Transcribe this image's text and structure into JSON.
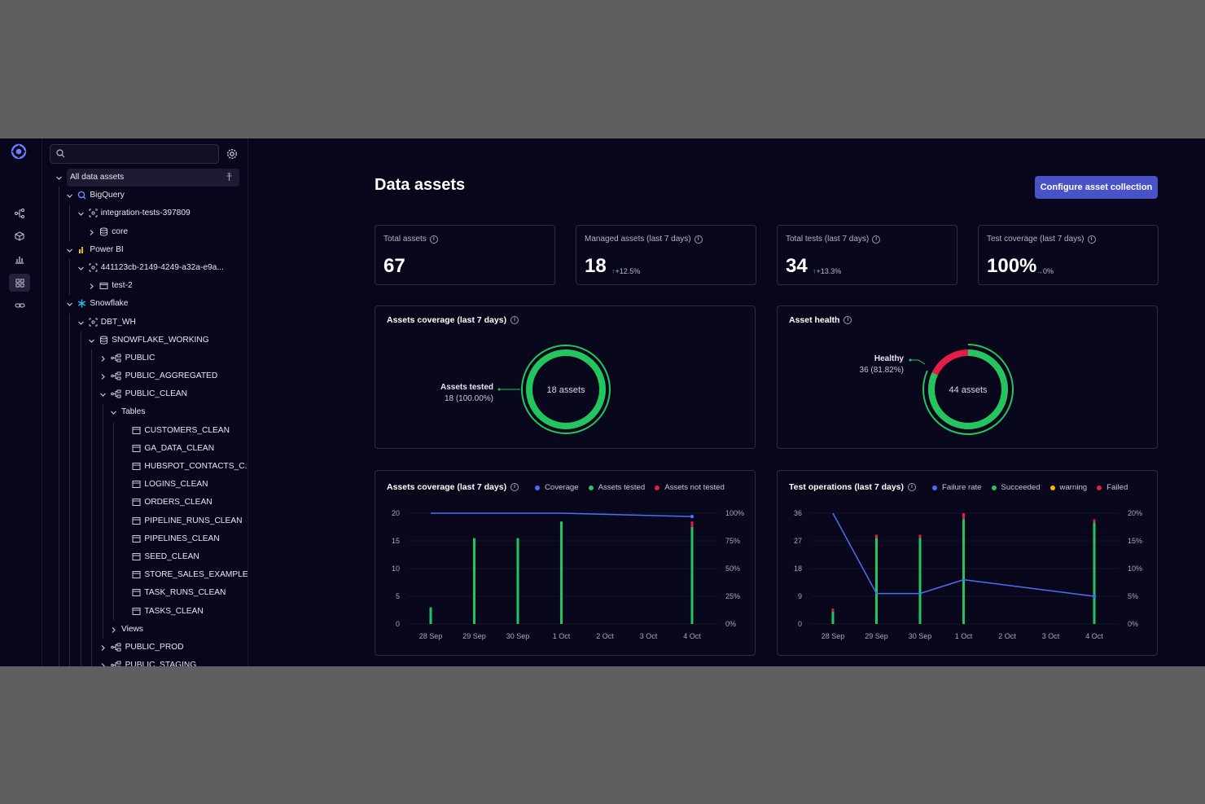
{
  "search": {
    "value": "",
    "placeholder": ""
  },
  "tree": [
    {
      "label": "All data assets",
      "depth": 0,
      "chev": "down",
      "icon": "",
      "highlight": true
    },
    {
      "label": "BigQuery",
      "depth": 1,
      "chev": "down",
      "icon": "bigquery-icon"
    },
    {
      "label": "integration-tests-397809",
      "depth": 2,
      "chev": "down",
      "icon": "project-icon"
    },
    {
      "label": "core",
      "depth": 3,
      "chev": "right",
      "icon": "database-icon"
    },
    {
      "label": "Power BI",
      "depth": 1,
      "chev": "down",
      "icon": "powerbi-icon"
    },
    {
      "label": "441123cb-2149-4249-a32a-e9a...",
      "depth": 2,
      "chev": "down",
      "icon": "project-icon"
    },
    {
      "label": "test-2",
      "depth": 3,
      "chev": "right",
      "icon": "folder-icon"
    },
    {
      "label": "Snowflake",
      "depth": 1,
      "chev": "down",
      "icon": "snowflake-icon"
    },
    {
      "label": "DBT_WH",
      "depth": 2,
      "chev": "down",
      "icon": "project-icon"
    },
    {
      "label": "SNOWFLAKE_WORKING",
      "depth": 3,
      "chev": "down",
      "icon": "database-icon"
    },
    {
      "label": "PUBLIC",
      "depth": 4,
      "chev": "right",
      "icon": "schema-icon"
    },
    {
      "label": "PUBLIC_AGGREGATED",
      "depth": 4,
      "chev": "right",
      "icon": "schema-icon"
    },
    {
      "label": "PUBLIC_CLEAN",
      "depth": 4,
      "chev": "down",
      "icon": "schema-icon"
    },
    {
      "label": "Tables",
      "depth": 5,
      "chev": "down",
      "icon": ""
    },
    {
      "label": "CUSTOMERS_CLEAN",
      "depth": 6,
      "chev": "",
      "icon": "table-icon"
    },
    {
      "label": "GA_DATA_CLEAN",
      "depth": 6,
      "chev": "",
      "icon": "table-icon"
    },
    {
      "label": "HUBSPOT_CONTACTS_C...",
      "depth": 6,
      "chev": "",
      "icon": "table-icon"
    },
    {
      "label": "LOGINS_CLEAN",
      "depth": 6,
      "chev": "",
      "icon": "table-icon"
    },
    {
      "label": "ORDERS_CLEAN",
      "depth": 6,
      "chev": "",
      "icon": "table-icon"
    },
    {
      "label": "PIPELINE_RUNS_CLEAN",
      "depth": 6,
      "chev": "",
      "icon": "table-icon"
    },
    {
      "label": "PIPELINES_CLEAN",
      "depth": 6,
      "chev": "",
      "icon": "table-icon"
    },
    {
      "label": "SEED_CLEAN",
      "depth": 6,
      "chev": "",
      "icon": "table-icon"
    },
    {
      "label": "STORE_SALES_EXAMPLE",
      "depth": 6,
      "chev": "",
      "icon": "table-icon"
    },
    {
      "label": "TASK_RUNS_CLEAN",
      "depth": 6,
      "chev": "",
      "icon": "table-icon"
    },
    {
      "label": "TASKS_CLEAN",
      "depth": 6,
      "chev": "",
      "icon": "table-icon"
    },
    {
      "label": "Views",
      "depth": 5,
      "chev": "right",
      "icon": ""
    },
    {
      "label": "PUBLIC_PROD",
      "depth": 4,
      "chev": "right",
      "icon": "schema-icon"
    },
    {
      "label": "PUBLIC_STAGING",
      "depth": 4,
      "chev": "right",
      "icon": "schema-icon"
    }
  ],
  "rail": [
    "lineage-icon",
    "cube-icon",
    "bar-chart-icon",
    "grid-icon",
    "link-icon"
  ],
  "page": {
    "title": "Data assets",
    "configure_label": "Configure asset collection"
  },
  "kpis": [
    {
      "label": "Total assets",
      "value": "67",
      "delta": ""
    },
    {
      "label": "Managed assets (last 7 days)",
      "value": "18",
      "arrow": "↑",
      "delta": "+12.5%"
    },
    {
      "label": "Total tests (last 7 days)",
      "value": "34",
      "arrow": "↑",
      "delta": "+13.3%"
    },
    {
      "label": "Test coverage (last 7 days)",
      "value": "100%",
      "arrow": "→",
      "delta": "0%"
    }
  ],
  "donut_coverage": {
    "title": "Assets coverage (last 7 days)",
    "center": "18 assets",
    "label": "Assets tested",
    "sub": "18 (100.00%)",
    "fraction": 1.0
  },
  "donut_health": {
    "title": "Asset health",
    "center": "44 assets",
    "label": "Healthy",
    "sub": "36 (81.82%)",
    "fraction": 0.8182
  },
  "colors": {
    "green": "#22c55e",
    "red": "#e11d48",
    "blue": "#4f6ef7",
    "yellow": "#f5b700"
  },
  "chart_data": [
    {
      "type": "bar",
      "title": "Assets coverage (last 7 days)",
      "categories": [
        "28 Sep",
        "29 Sep",
        "30 Sep",
        "1 Oct",
        "2 Oct",
        "3 Oct",
        "4 Oct"
      ],
      "ylim": [
        0,
        20
      ],
      "y_ticks": [
        "20",
        "15",
        "10",
        "5",
        "0"
      ],
      "y2_ticks": [
        "100%",
        "75%",
        "50%",
        "25%",
        "0%"
      ],
      "series": [
        {
          "name": "Assets tested",
          "values": [
            3,
            15.5,
            15.5,
            18.5,
            0,
            0,
            17.5
          ]
        },
        {
          "name": "Assets not tested",
          "values": [
            0,
            0,
            0,
            0,
            0,
            0,
            1
          ]
        },
        {
          "name": "Coverage",
          "values": [
            100,
            100,
            100,
            100,
            null,
            null,
            97
          ]
        }
      ]
    },
    {
      "type": "bar",
      "title": "Test operations (last 7 days)",
      "categories": [
        "28 Sep",
        "29 Sep",
        "30 Sep",
        "1 Oct",
        "2 Oct",
        "3 Oct",
        "4 Oct"
      ],
      "ylim": [
        0,
        36
      ],
      "y_ticks": [
        "36",
        "27",
        "18",
        "9",
        "0"
      ],
      "y2_ticks": [
        "20%",
        "15%",
        "10%",
        "5%",
        "0%"
      ],
      "series": [
        {
          "name": "Failure rate",
          "values": [
            20,
            5.5,
            5.5,
            8,
            null,
            null,
            5
          ]
        },
        {
          "name": "Succeeded",
          "values": [
            4,
            28,
            28,
            34,
            0,
            0,
            33
          ]
        },
        {
          "name": "warning",
          "values": [
            0,
            0,
            0,
            0,
            0,
            0,
            0
          ]
        },
        {
          "name": "Failed",
          "values": [
            1,
            1,
            1,
            2,
            0,
            0,
            1
          ]
        }
      ]
    }
  ]
}
